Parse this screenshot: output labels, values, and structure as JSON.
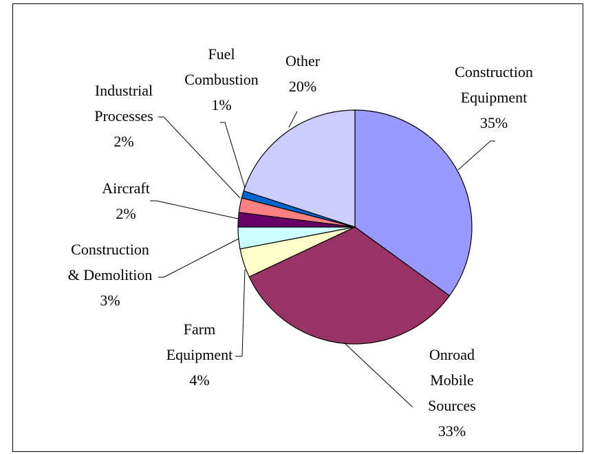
{
  "chart_data": {
    "type": "pie",
    "categories": [
      "Construction Equipment",
      "Onroad Mobile Sources",
      "Farm Equipment",
      "Construction & Demolition",
      "Aircraft",
      "Industrial Processes",
      "Fuel Combustion",
      "Other"
    ],
    "values": [
      35,
      33,
      4,
      3,
      2,
      2,
      1,
      20
    ],
    "value_labels": [
      "35%",
      "33%",
      "4%",
      "3%",
      "2%",
      "2%",
      "1%",
      "20%"
    ],
    "colors": [
      "#9999ff",
      "#993366",
      "#ffffcc",
      "#ccffff",
      "#660066",
      "#ff8080",
      "#0066cc",
      "#ccccff"
    ]
  }
}
